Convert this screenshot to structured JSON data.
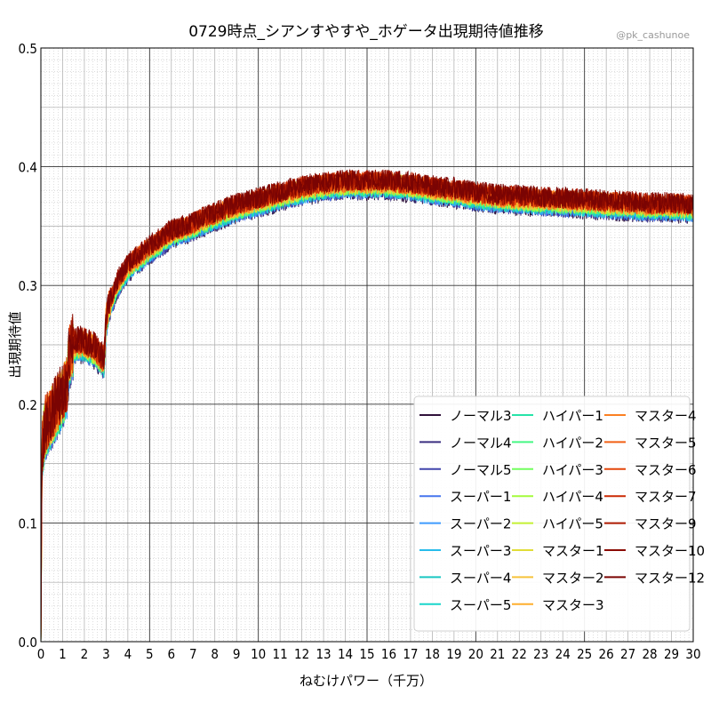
{
  "chart_data": {
    "type": "line",
    "title": "0729時点_シアンすやすや_ホゲータ出現期待値推移",
    "credit": "@pk_cashunoe",
    "xlabel": "ねむけパワー（千万）",
    "ylabel": "出現期待値",
    "xlim": [
      0,
      30
    ],
    "ylim": [
      0,
      0.5
    ],
    "x_ticks": [
      0,
      1,
      2,
      3,
      4,
      5,
      6,
      7,
      8,
      9,
      10,
      11,
      12,
      13,
      14,
      15,
      16,
      17,
      18,
      19,
      20,
      21,
      22,
      23,
      24,
      25,
      26,
      27,
      28,
      29,
      30
    ],
    "y_ticks": [
      0.0,
      0.1,
      0.2,
      0.3,
      0.4,
      0.5
    ],
    "grid": true,
    "legend_position": "lower-right",
    "legend_columns": 3,
    "series": [
      {
        "name": "ノーマル3",
        "color": "#30123b"
      },
      {
        "name": "ノーマル4",
        "color": "#3b2f80"
      },
      {
        "name": "ノーマル5",
        "color": "#4145ab"
      },
      {
        "name": "スーパー1",
        "color": "#4675ed"
      },
      {
        "name": "スーパー2",
        "color": "#3e9bfe"
      },
      {
        "name": "スーパー3",
        "color": "#28bceb"
      },
      {
        "name": "スーパー4",
        "color": "#1ac7c2"
      },
      {
        "name": "スーパー5",
        "color": "#18d6cb"
      },
      {
        "name": "ハイパー1",
        "color": "#26e4a8"
      },
      {
        "name": "ハイパー2",
        "color": "#46f884"
      },
      {
        "name": "ハイパー3",
        "color": "#72fe5e"
      },
      {
        "name": "ハイパー4",
        "color": "#a4fc3c"
      },
      {
        "name": "ハイパー5",
        "color": "#c4f133"
      },
      {
        "name": "マスター1",
        "color": "#e1dd37"
      },
      {
        "name": "マスター2",
        "color": "#f6c33a"
      },
      {
        "name": "マスター3",
        "color": "#feae2d"
      },
      {
        "name": "マスター4",
        "color": "#fb8022"
      },
      {
        "name": "マスター5",
        "color": "#f26014"
      },
      {
        "name": "マスター6",
        "color": "#e4460a"
      },
      {
        "name": "マスター7",
        "color": "#cb2a04"
      },
      {
        "name": "マスター9",
        "color": "#ad1a02"
      },
      {
        "name": "マスター10",
        "color": "#8a0a01"
      },
      {
        "name": "マスター12",
        "color": "#7a0403"
      }
    ],
    "trend": {
      "x": [
        0,
        0.05,
        0.2,
        0.5,
        0.8,
        1.2,
        1.3,
        1.5,
        2.0,
        2.5,
        2.9,
        3.0,
        3.1,
        3.5,
        4.0,
        5.0,
        6.0,
        7.0,
        8.0,
        9.0,
        10.0,
        11.0,
        12.0,
        13.0,
        14.0,
        15.0,
        16.0,
        17.0,
        18.0,
        19.0,
        20.0,
        21.0,
        22.0,
        23.0,
        24.0,
        25.0,
        26.0,
        27.0,
        28.0,
        29.0,
        30.0
      ],
      "y": [
        0.0,
        0.16,
        0.18,
        0.19,
        0.2,
        0.215,
        0.24,
        0.25,
        0.25,
        0.245,
        0.235,
        0.27,
        0.28,
        0.3,
        0.315,
        0.33,
        0.343,
        0.35,
        0.358,
        0.365,
        0.37,
        0.375,
        0.38,
        0.383,
        0.385,
        0.385,
        0.385,
        0.383,
        0.38,
        0.378,
        0.375,
        0.373,
        0.372,
        0.371,
        0.37,
        0.369,
        0.368,
        0.367,
        0.366,
        0.366,
        0.365
      ]
    }
  }
}
